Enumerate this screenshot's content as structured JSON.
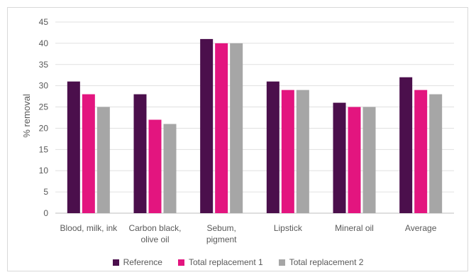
{
  "chart_data": {
    "type": "bar",
    "title": "",
    "xlabel": "",
    "ylabel": "% removal",
    "ylim": [
      0,
      45
    ],
    "yticks": [
      0,
      5,
      10,
      15,
      20,
      25,
      30,
      35,
      40,
      45
    ],
    "grid": true,
    "legend_position": "bottom",
    "categories": [
      [
        "Blood, milk, ink"
      ],
      [
        "Carbon black,",
        "olive oil"
      ],
      [
        "Sebum,",
        "pigment"
      ],
      [
        "Lipstick"
      ],
      [
        "Mineral oil"
      ],
      [
        "Average"
      ]
    ],
    "series": [
      {
        "name": "Reference",
        "color": "#4b0f4c",
        "values": [
          31,
          28,
          41,
          31,
          26,
          32
        ]
      },
      {
        "name": "Total replacement 1",
        "color": "#e3157f",
        "values": [
          28,
          22,
          40,
          29,
          25,
          29
        ]
      },
      {
        "name": "Total replacement 2",
        "color": "#a6a6a6",
        "values": [
          25,
          21,
          40,
          29,
          25,
          28
        ]
      }
    ]
  }
}
